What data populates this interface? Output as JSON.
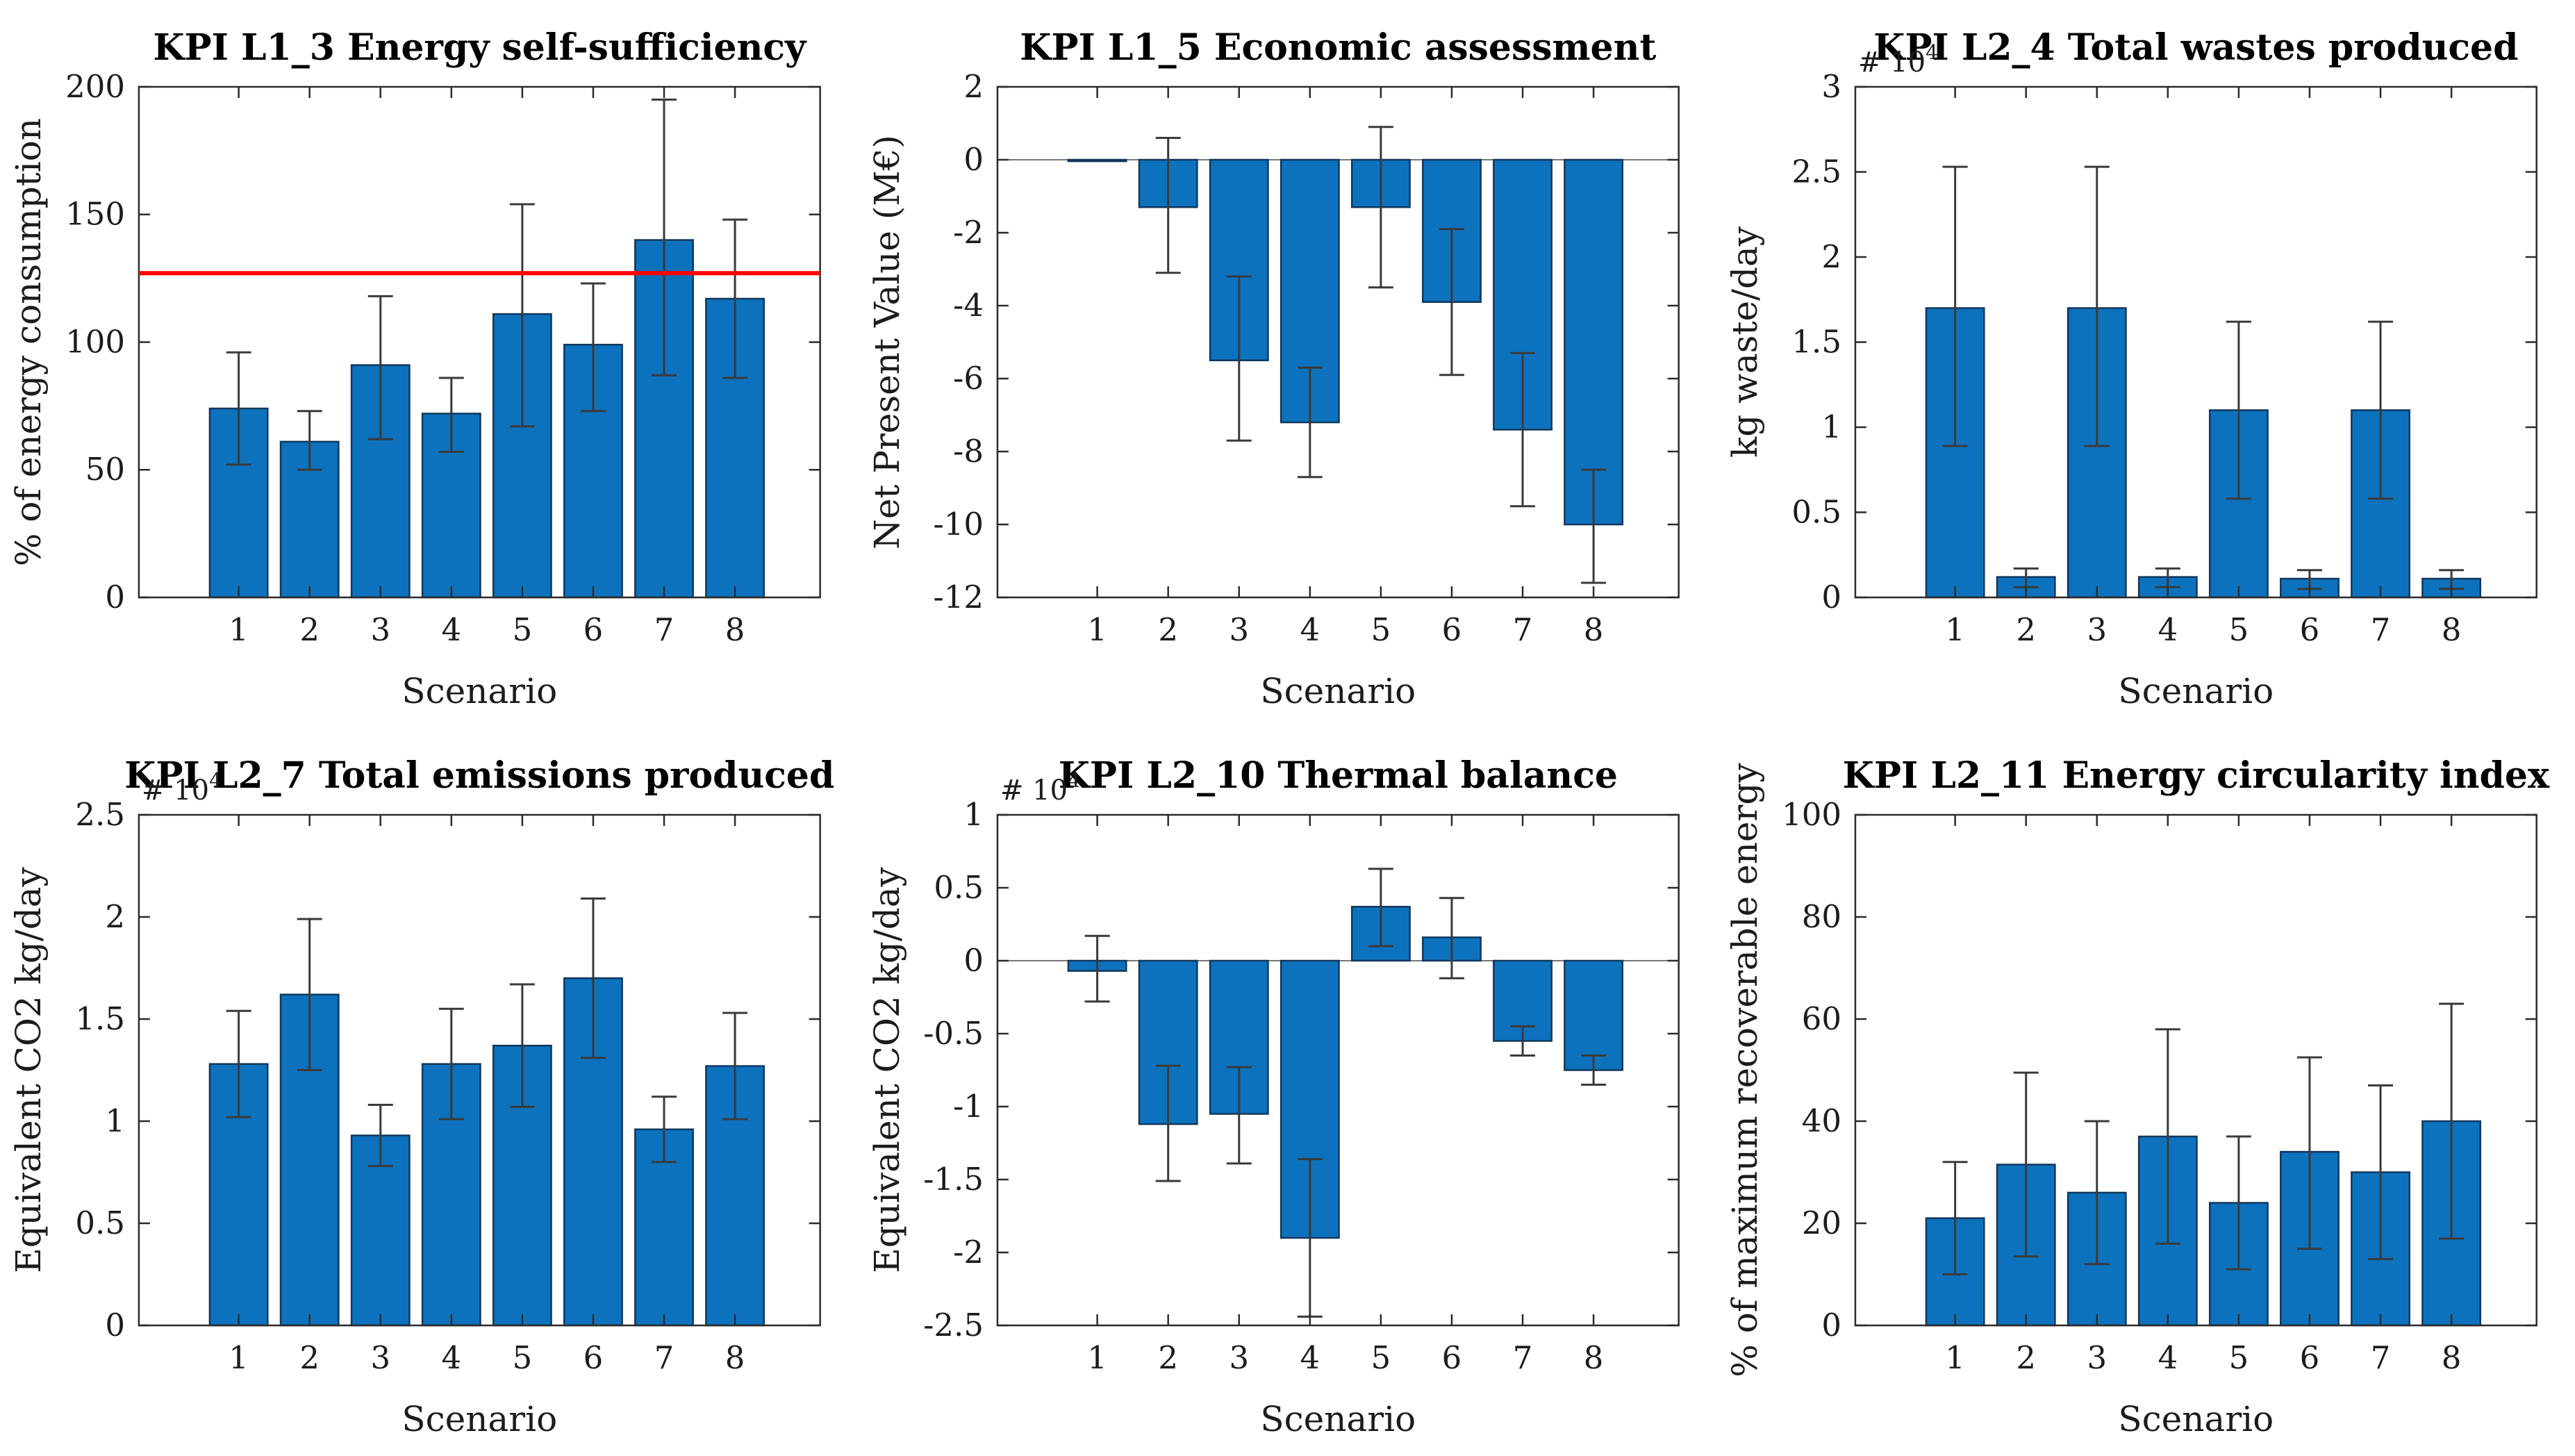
{
  "page": {
    "background": "#ffffff",
    "layout": "2x3-grid-of-kpi-charts"
  },
  "style": {
    "bar_fill": "#0d72bd",
    "bar_edge": "#10375c",
    "error_color": "#3a3a3a",
    "axis_color": "#2b2b2b",
    "zero_line_color": "#777777",
    "ref_line_color": "#ff0000",
    "label_color": "#1c1c1c",
    "title_color": "#000000"
  },
  "chart_data": [
    {
      "type": "bar",
      "title": "KPI L1_3 Energy self-sufficiency",
      "xlabel": "Scenario",
      "ylabel": "% of energy consumption",
      "categories": [
        "1",
        "2",
        "3",
        "4",
        "5",
        "6",
        "7",
        "8"
      ],
      "values": [
        74,
        61,
        91,
        72,
        111,
        99,
        140,
        117
      ],
      "error_low": [
        52,
        50,
        62,
        57,
        67,
        73,
        87,
        86
      ],
      "error_high": [
        96,
        73,
        118,
        86,
        154,
        123,
        195,
        148
      ],
      "ylim": [
        0,
        200
      ],
      "yticks": [
        0,
        50,
        100,
        150,
        200
      ],
      "y_multiplier": null,
      "ref_line": 127,
      "grid": false,
      "legend": null
    },
    {
      "type": "bar",
      "title": "KPI L1_5 Economic assessment",
      "xlabel": "Scenario",
      "ylabel": "Net Present Value (M€)",
      "categories": [
        "1",
        "2",
        "3",
        "4",
        "5",
        "6",
        "7",
        "8"
      ],
      "values": [
        -0.04,
        -1.3,
        -5.5,
        -7.2,
        -1.3,
        -3.9,
        -7.4,
        -10.0
      ],
      "error_low": [
        null,
        -3.1,
        -7.7,
        -8.7,
        -3.5,
        -5.9,
        -9.5,
        -11.6
      ],
      "error_high": [
        null,
        0.6,
        -3.2,
        -5.7,
        0.9,
        -1.9,
        -5.3,
        -8.5
      ],
      "ylim": [
        -12,
        2
      ],
      "yticks": [
        2,
        0,
        -2,
        -4,
        -6,
        -8,
        -10,
        -12
      ],
      "y_multiplier": null,
      "ref_line": null,
      "grid": false,
      "legend": null
    },
    {
      "type": "bar",
      "title": "KPI L2_4 Total wastes produced",
      "xlabel": "Scenario",
      "ylabel": "kg waste/day",
      "categories": [
        "1",
        "2",
        "3",
        "4",
        "5",
        "6",
        "7",
        "8"
      ],
      "values": [
        1.7,
        0.12,
        1.7,
        0.12,
        1.1,
        0.11,
        1.1,
        0.11
      ],
      "error_low": [
        0.89,
        0.06,
        0.89,
        0.06,
        0.58,
        0.05,
        0.58,
        0.05
      ],
      "error_high": [
        2.53,
        0.17,
        2.53,
        0.17,
        1.62,
        0.16,
        1.62,
        0.16
      ],
      "ylim": [
        0,
        3
      ],
      "yticks": [
        0,
        0.5,
        1,
        1.5,
        2,
        2.5,
        3
      ],
      "y_multiplier": {
        "text": "# 10",
        "exp": "4"
      },
      "ref_line": null,
      "grid": false,
      "legend": null
    },
    {
      "type": "bar",
      "title": "KPI L2_7 Total emissions produced",
      "xlabel": "Scenario",
      "ylabel": "Equivalent CO2 kg/day",
      "categories": [
        "1",
        "2",
        "3",
        "4",
        "5",
        "6",
        "7",
        "8"
      ],
      "values": [
        1.28,
        1.62,
        0.93,
        1.28,
        1.37,
        1.7,
        0.96,
        1.27
      ],
      "error_low": [
        1.02,
        1.25,
        0.78,
        1.01,
        1.07,
        1.31,
        0.8,
        1.01
      ],
      "error_high": [
        1.54,
        1.99,
        1.08,
        1.55,
        1.67,
        2.09,
        1.12,
        1.53
      ],
      "ylim": [
        0,
        2.5
      ],
      "yticks": [
        0,
        0.5,
        1,
        1.5,
        2,
        2.5
      ],
      "y_multiplier": {
        "text": "# 10",
        "exp": "4"
      },
      "ref_line": null,
      "grid": false,
      "legend": null
    },
    {
      "type": "bar",
      "title": "KPI L2_10 Thermal balance",
      "xlabel": "Scenario",
      "ylabel": "Equivalent CO2 kg/day",
      "categories": [
        "1",
        "2",
        "3",
        "4",
        "5",
        "6",
        "7",
        "8"
      ],
      "values": [
        -0.07,
        -1.12,
        -1.05,
        -1.9,
        0.37,
        0.16,
        -0.55,
        -0.75
      ],
      "error_low": [
        -0.28,
        -1.51,
        -1.39,
        -2.44,
        0.1,
        -0.12,
        -0.65,
        -0.85
      ],
      "error_high": [
        0.17,
        -0.72,
        -0.73,
        -1.36,
        0.63,
        0.43,
        -0.45,
        -0.65
      ],
      "ylim": [
        -2.5,
        1
      ],
      "yticks": [
        1,
        0.5,
        0,
        -0.5,
        -1,
        -1.5,
        -2,
        -2.5
      ],
      "y_multiplier": {
        "text": "# 10",
        "exp": "4"
      },
      "ref_line": null,
      "grid": false,
      "legend": null
    },
    {
      "type": "bar",
      "title": "KPI L2_11 Energy circularity index",
      "xlabel": "Scenario",
      "ylabel": "% of maximum recoverable energy",
      "categories": [
        "1",
        "2",
        "3",
        "4",
        "5",
        "6",
        "7",
        "8"
      ],
      "values": [
        21,
        31.5,
        26,
        37,
        24,
        34,
        30,
        40
      ],
      "error_low": [
        10,
        13.5,
        12,
        16,
        11,
        15,
        13,
        17
      ],
      "error_high": [
        32,
        49.5,
        40,
        58,
        37,
        52.5,
        47,
        63
      ],
      "ylim": [
        0,
        100
      ],
      "yticks": [
        0,
        20,
        40,
        60,
        80,
        100
      ],
      "y_multiplier": null,
      "ref_line": null,
      "grid": false,
      "legend": null
    }
  ]
}
